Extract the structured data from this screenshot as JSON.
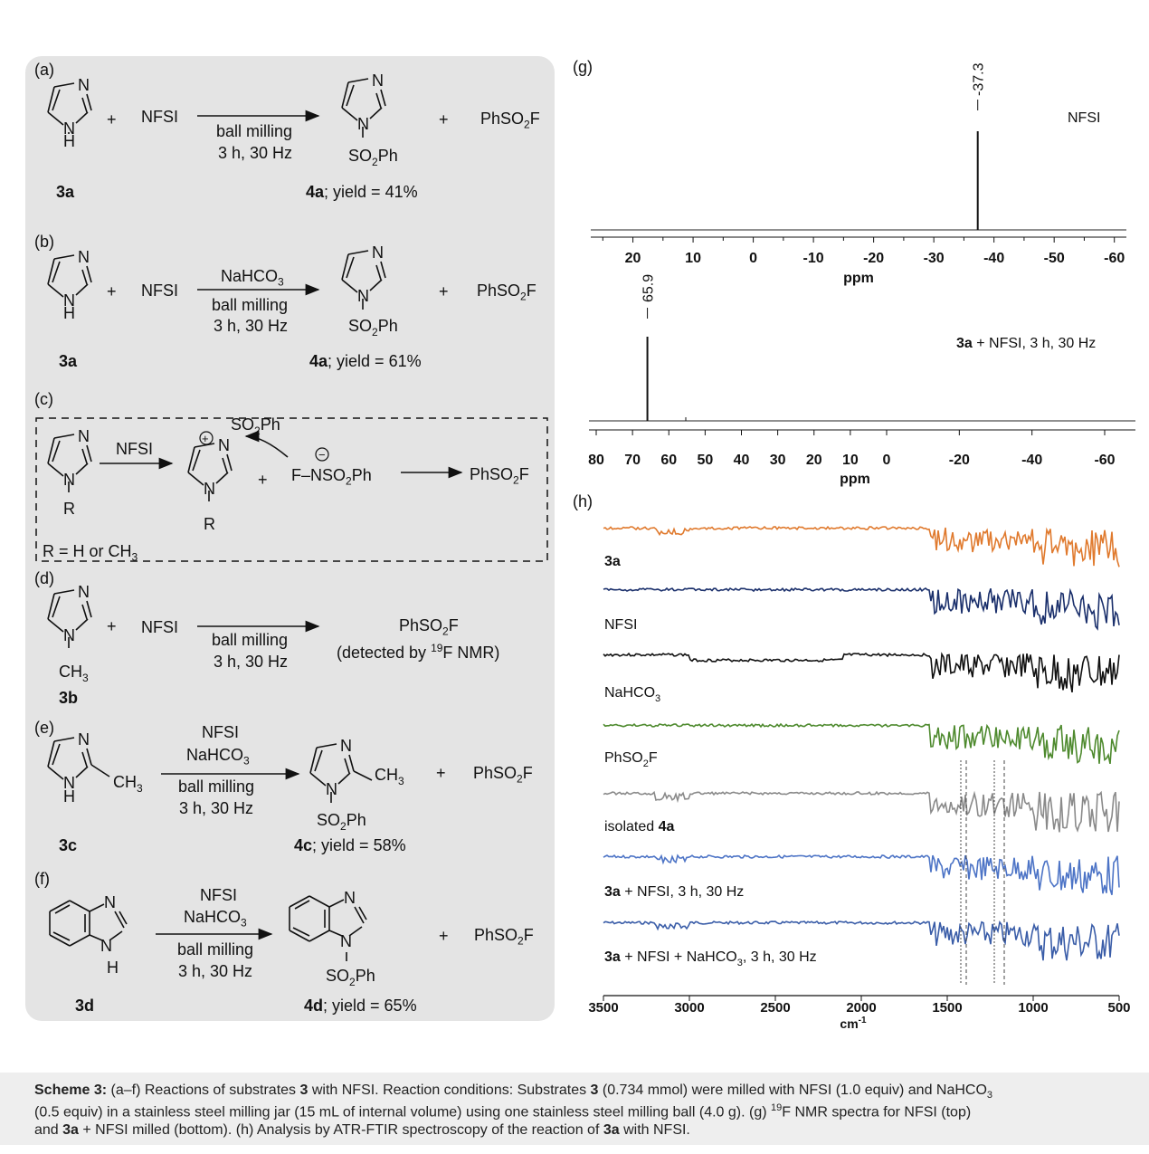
{
  "scheme": {
    "a": {
      "label": "(a)",
      "reagent": "NFSI",
      "cond1": "ball milling",
      "cond2": "3 h, 30 Hz",
      "substrate": "3a",
      "product": "4a",
      "yield": "; yield = 41%",
      "byproduct": "PhSO",
      "byproduct_tail": "F"
    },
    "b": {
      "label": "(b)",
      "reagent": "NFSI",
      "cond0": "NaHCO",
      "cond1": "ball milling",
      "cond2": "3 h, 30 Hz",
      "substrate": "3a",
      "product": "4a",
      "yield": "; yield = 61%",
      "byproduct": "PhSO",
      "byproduct_tail": "F"
    },
    "c": {
      "label": "(c)",
      "reagent": "NFSI",
      "anion": "F–NSO",
      "anion_tail": "Ph",
      "product": "PhSO",
      "product_tail": "F",
      "r_def": "R = H or CH",
      "r_letter": "R"
    },
    "d": {
      "label": "(d)",
      "reagent": "NFSI",
      "cond1": "ball milling",
      "cond2": "3 h, 30 Hz",
      "substrate": "3b",
      "product": "PhSO",
      "product_tail": "F",
      "detected_pre": "(detected by ",
      "detected_sup": "19",
      "detected_post": "F NMR)"
    },
    "e": {
      "label": "(e)",
      "reagent1": "NFSI",
      "reagent2": "NaHCO",
      "cond1": "ball milling",
      "cond2": "3 h, 30 Hz",
      "substrate": "3c",
      "product": "4c",
      "yield": "; yield = 58%",
      "byproduct": "PhSO",
      "byproduct_tail": "F"
    },
    "f": {
      "label": "(f)",
      "reagent1": "NFSI",
      "reagent2": "NaHCO",
      "cond1": "ball milling",
      "cond2": "3 h, 30 Hz",
      "substrate": "3d",
      "product": "4d",
      "yield": "; yield = 65%",
      "byproduct": "PhSO",
      "byproduct_tail": "F"
    },
    "plus": "+",
    "so2ph": "SO",
    "so2ph_tail": "Ph",
    "ch3": "CH"
  },
  "chart_data": [
    {
      "panel": "(g)",
      "type": "line",
      "xlabel": "ppm",
      "xticks": [
        20,
        10,
        0,
        -10,
        -20,
        -30,
        -40,
        -50,
        -60
      ],
      "xlim": [
        27,
        -62
      ],
      "series": [
        {
          "name": "NFSI",
          "peaks": [
            {
              "x": -37.3,
              "label": "-37.3"
            }
          ]
        }
      ]
    },
    {
      "panel": "(g)",
      "type": "line",
      "xlabel": "ppm",
      "xticks": [
        80,
        70,
        60,
        50,
        40,
        30,
        20,
        10,
        0,
        -20,
        -40,
        -60
      ],
      "series": [
        {
          "name_bold": "3a",
          "name": " + NFSI, 3 h, 30 Hz",
          "peaks": [
            {
              "x": 65.9,
              "label": "65.9"
            }
          ]
        }
      ]
    },
    {
      "panel": "(h)",
      "type": "line",
      "xlabel": "cm",
      "xlabel_sup": "-1",
      "xticks": [
        3500,
        3000,
        2500,
        2000,
        1500,
        1000,
        500
      ],
      "xlim": [
        3500,
        500
      ],
      "series": [
        {
          "label_bold": "3a",
          "label": "",
          "color": "#e07a2e"
        },
        {
          "label_bold": "",
          "label": "NFSI",
          "color": "#1a2f6b"
        },
        {
          "label_bold": "",
          "label": "NaHCO",
          "label_sub": "3",
          "color": "#111111"
        },
        {
          "label_bold": "",
          "label": "PhSO",
          "label_sub": "2",
          "label_tail": "F",
          "color": "#4e8a2e"
        },
        {
          "label_bold": "4a",
          "label": "isolated ",
          "color": "#8a8a8a"
        },
        {
          "label_bold": "3a",
          "label": " + NFSI, 3 h, 30 Hz",
          "color": "#4d74c6"
        },
        {
          "label_bold": "3a",
          "label": " + NFSI + NaHCO",
          "label_sub": "3",
          "label_tail": ", 3 h, 30 Hz",
          "color": "#3a5da8"
        }
      ]
    }
  ],
  "caption": {
    "scheme_bold": "Scheme 3:",
    "line1_a": " (a–f) Reactions of substrates ",
    "line1_b": "3",
    "line1_c": " with NFSI. Reaction conditions: Substrates ",
    "line1_d": "3",
    "line1_e": " (0.734 mmol) were milled with NFSI (1.0 equiv) and NaHCO",
    "line2_a": "(0.5 equiv) in a stainless steel milling jar (15 mL of internal volume) using one stainless steel milling ball (4.0 g). (g) ",
    "line2_sup": "19",
    "line2_b": "F NMR spectra for NFSI (top)",
    "line3_a": "and ",
    "line3_b": "3a",
    "line3_c": " + NFSI milled (bottom). (h) Analysis by ATR-FTIR spectroscopy of the reaction of ",
    "line3_d": "3a",
    "line3_e": " with NFSI."
  }
}
